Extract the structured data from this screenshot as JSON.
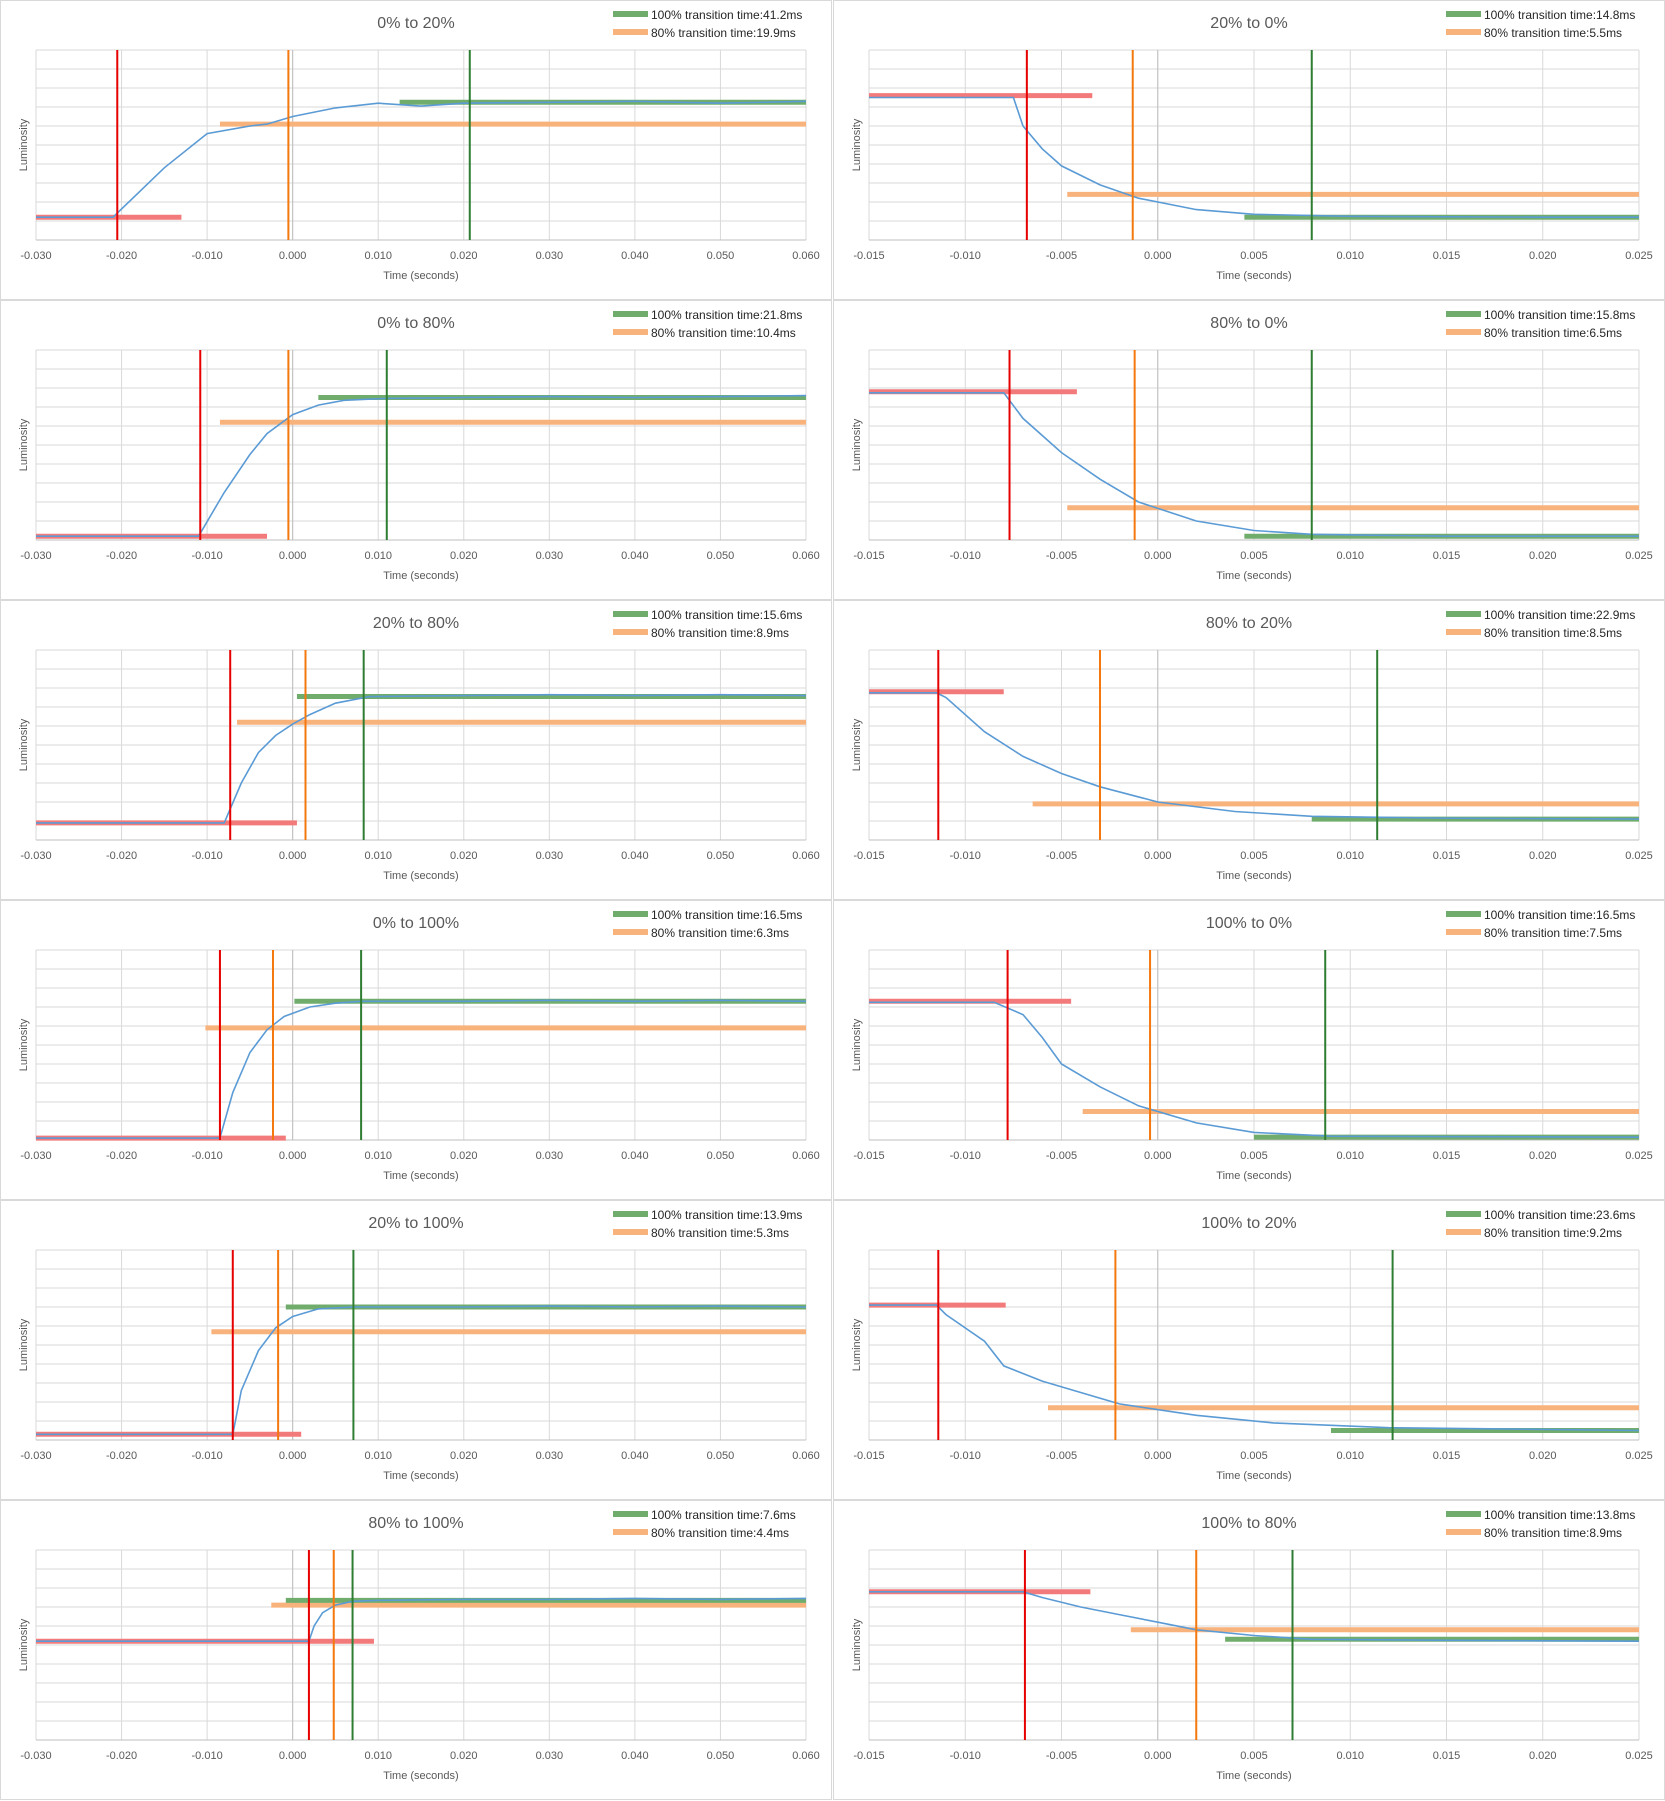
{
  "axis_labels": {
    "x": "Time (seconds)",
    "y": "Luminosity"
  },
  "legend_labels": {
    "full": "100% transition time:",
    "partial": "80% transition time:"
  },
  "colors": {
    "curve": "#5b9bd5",
    "green": "#2e7d32",
    "green_bar": "#70ad6c",
    "orange": "#f4780e",
    "orange_bar": "#f8b27c",
    "red": "#e60000",
    "red_bar": "#f27a7a",
    "grid": "#d9d9d9",
    "text": "#595959"
  },
  "chart_data": [
    {
      "type": "line",
      "title": "0% to 20%",
      "legend": [
        "41.2ms",
        "19.9ms"
      ],
      "xlim": [
        -0.03,
        0.06
      ],
      "xticks": [
        "-0.030",
        "-0.020",
        "-0.010",
        "0.000",
        "0.010",
        "0.020",
        "0.030",
        "0.040",
        "0.050",
        "0.060"
      ],
      "xlabel": "Time (seconds)",
      "ylabel": "Luminosity",
      "ylim": [
        0,
        10
      ],
      "series": [
        {
          "x": [
            -0.03,
            -0.021,
            -0.015,
            -0.01,
            -0.005,
            -0.003,
            0,
            0.005,
            0.01,
            0.015,
            0.02,
            0.03,
            0.04,
            0.05,
            0.06
          ],
          "y": [
            1.2,
            1.2,
            3.8,
            5.6,
            6.0,
            6.1,
            6.5,
            6.95,
            7.2,
            7.05,
            7.2,
            7.25,
            7.3,
            7.2,
            7.3
          ]
        }
      ],
      "red": {
        "x": -0.0205,
        "y": 1.2,
        "x0": -0.03,
        "x1": -0.013
      },
      "orange": {
        "x": -0.0005,
        "y": 6.1,
        "x0": -0.0085,
        "x1": 0.06
      },
      "green": {
        "x": 0.0207,
        "y": 7.25,
        "x0": 0.0125,
        "x1": 0.06
      }
    },
    {
      "type": "line",
      "title": "20% to 0%",
      "legend": [
        "14.8ms",
        "5.5ms"
      ],
      "xlim": [
        -0.015,
        0.025
      ],
      "xticks": [
        "-0.015",
        "-0.010",
        "-0.005",
        "0.000",
        "0.005",
        "0.010",
        "0.015",
        "0.020",
        "0.025"
      ],
      "xlabel": "Time (seconds)",
      "ylabel": "Luminosity",
      "ylim": [
        0,
        10
      ],
      "series": [
        {
          "x": [
            -0.015,
            -0.0075,
            -0.007,
            -0.006,
            -0.005,
            -0.003,
            -0.001,
            0.002,
            0.005,
            0.01,
            0.02,
            0.025
          ],
          "y": [
            7.5,
            7.5,
            6.0,
            4.8,
            3.9,
            2.9,
            2.2,
            1.6,
            1.35,
            1.25,
            1.2,
            1.2
          ]
        }
      ],
      "red": {
        "x": -0.0068,
        "y": 7.6,
        "x0": -0.015,
        "x1": -0.0034
      },
      "orange": {
        "x": -0.0013,
        "y": 2.4,
        "x0": -0.0047,
        "x1": 0.025
      },
      "green": {
        "x": 0.008,
        "y": 1.2,
        "x0": 0.0045,
        "x1": 0.025
      }
    },
    {
      "type": "line",
      "title": "0% to 80%",
      "legend": [
        "21.8ms",
        "10.4ms"
      ],
      "xlim": [
        -0.03,
        0.06
      ],
      "xticks": [
        "-0.030",
        "-0.020",
        "-0.010",
        "0.000",
        "0.010",
        "0.020",
        "0.030",
        "0.040",
        "0.050",
        "0.060"
      ],
      "xlabel": "Time (seconds)",
      "ylabel": "Luminosity",
      "ylim": [
        0,
        10
      ],
      "series": [
        {
          "x": [
            -0.03,
            -0.011,
            -0.008,
            -0.005,
            -0.003,
            0,
            0.003,
            0.006,
            0.011,
            0.02,
            0.03,
            0.04,
            0.05,
            0.06
          ],
          "y": [
            0.2,
            0.2,
            2.5,
            4.5,
            5.6,
            6.6,
            7.1,
            7.35,
            7.45,
            7.5,
            7.55,
            7.5,
            7.55,
            7.6
          ]
        }
      ],
      "red": {
        "x": -0.0108,
        "y": 0.2,
        "x0": -0.03,
        "x1": -0.003
      },
      "orange": {
        "x": -0.0005,
        "y": 6.2,
        "x0": -0.0085,
        "x1": 0.06
      },
      "green": {
        "x": 0.011,
        "y": 7.5,
        "x0": 0.003,
        "x1": 0.06
      }
    },
    {
      "type": "line",
      "title": "80% to 0%",
      "legend": [
        "15.8ms",
        "6.5ms"
      ],
      "xlim": [
        -0.015,
        0.025
      ],
      "xticks": [
        "-0.015",
        "-0.010",
        "-0.005",
        "0.000",
        "0.005",
        "0.010",
        "0.015",
        "0.020",
        "0.025"
      ],
      "xlabel": "Time (seconds)",
      "ylabel": "Luminosity",
      "ylim": [
        0,
        10
      ],
      "series": [
        {
          "x": [
            -0.015,
            -0.008,
            -0.007,
            -0.005,
            -0.003,
            -0.001,
            0.002,
            0.005,
            0.008,
            0.015,
            0.025
          ],
          "y": [
            7.75,
            7.75,
            6.4,
            4.6,
            3.2,
            2.0,
            1.0,
            0.5,
            0.3,
            0.2,
            0.2
          ]
        }
      ],
      "red": {
        "x": -0.0077,
        "y": 7.8,
        "x0": -0.015,
        "x1": -0.0042
      },
      "orange": {
        "x": -0.0012,
        "y": 1.7,
        "x0": -0.0047,
        "x1": 0.025
      },
      "green": {
        "x": 0.008,
        "y": 0.2,
        "x0": 0.0045,
        "x1": 0.025
      }
    },
    {
      "type": "line",
      "title": "20% to 80%",
      "legend": [
        "15.6ms",
        "8.9ms"
      ],
      "xlim": [
        -0.03,
        0.06
      ],
      "xticks": [
        "-0.030",
        "-0.020",
        "-0.010",
        "0.000",
        "0.010",
        "0.020",
        "0.030",
        "0.040",
        "0.050",
        "0.060"
      ],
      "xlabel": "Time (seconds)",
      "ylabel": "Luminosity",
      "ylim": [
        0,
        10
      ],
      "series": [
        {
          "x": [
            -0.03,
            -0.008,
            -0.006,
            -0.004,
            -0.002,
            0,
            0.002,
            0.005,
            0.009,
            0.02,
            0.03,
            0.04,
            0.05,
            0.06
          ],
          "y": [
            0.9,
            0.9,
            3.0,
            4.6,
            5.5,
            6.1,
            6.6,
            7.2,
            7.55,
            7.6,
            7.65,
            7.6,
            7.65,
            7.6
          ]
        }
      ],
      "red": {
        "x": -0.0073,
        "y": 0.9,
        "x0": -0.03,
        "x1": 0.0005
      },
      "orange": {
        "x": 0.0015,
        "y": 6.2,
        "x0": -0.0065,
        "x1": 0.06
      },
      "green": {
        "x": 0.0083,
        "y": 7.55,
        "x0": 0.0005,
        "x1": 0.06
      }
    },
    {
      "type": "line",
      "title": "80% to 20%",
      "legend": [
        "22.9ms",
        "8.5ms"
      ],
      "xlim": [
        -0.015,
        0.025
      ],
      "xticks": [
        "-0.015",
        "-0.010",
        "-0.005",
        "0.000",
        "0.005",
        "0.010",
        "0.015",
        "0.020",
        "0.025"
      ],
      "xlabel": "Time (seconds)",
      "ylabel": "Luminosity",
      "ylim": [
        0,
        10
      ],
      "series": [
        {
          "x": [
            -0.015,
            -0.0115,
            -0.011,
            -0.009,
            -0.007,
            -0.005,
            -0.003,
            0,
            0.004,
            0.008,
            0.015,
            0.025
          ],
          "y": [
            7.75,
            7.75,
            7.5,
            5.7,
            4.4,
            3.5,
            2.8,
            2.0,
            1.5,
            1.25,
            1.15,
            1.1
          ]
        }
      ],
      "red": {
        "x": -0.0114,
        "y": 7.8,
        "x0": -0.015,
        "x1": -0.008
      },
      "orange": {
        "x": -0.003,
        "y": 1.9,
        "x0": -0.0065,
        "x1": 0.025
      },
      "green": {
        "x": 0.0114,
        "y": 1.1,
        "x0": 0.008,
        "x1": 0.025
      }
    },
    {
      "type": "line",
      "title": "0% to 100%",
      "legend": [
        "16.5ms",
        "6.3ms"
      ],
      "xlim": [
        -0.03,
        0.06
      ],
      "xticks": [
        "-0.030",
        "-0.020",
        "-0.010",
        "0.000",
        "0.010",
        "0.020",
        "0.030",
        "0.040",
        "0.050",
        "0.060"
      ],
      "xlabel": "Time (seconds)",
      "ylabel": "Luminosity",
      "ylim": [
        0,
        10
      ],
      "series": [
        {
          "x": [
            -0.03,
            -0.0085,
            -0.007,
            -0.005,
            -0.003,
            -0.001,
            0.002,
            0.005,
            0.008,
            0.02,
            0.03,
            0.04,
            0.05,
            0.06
          ],
          "y": [
            0.1,
            0.1,
            2.5,
            4.6,
            5.8,
            6.5,
            7.0,
            7.2,
            7.3,
            7.3,
            7.35,
            7.3,
            7.35,
            7.3
          ]
        }
      ],
      "red": {
        "x": -0.0085,
        "y": 0.1,
        "x0": -0.03,
        "x1": -0.0008
      },
      "orange": {
        "x": -0.0023,
        "y": 5.9,
        "x0": -0.0102,
        "x1": 0.06
      },
      "green": {
        "x": 0.008,
        "y": 7.3,
        "x0": 0.0002,
        "x1": 0.06
      }
    },
    {
      "type": "line",
      "title": "100% to 0%",
      "legend": [
        "16.5ms",
        "7.5ms"
      ],
      "xlim": [
        -0.015,
        0.025
      ],
      "xticks": [
        "-0.015",
        "-0.010",
        "-0.005",
        "0.000",
        "0.005",
        "0.010",
        "0.015",
        "0.020",
        "0.025"
      ],
      "xlabel": "Time (seconds)",
      "ylabel": "Luminosity",
      "ylim": [
        0,
        10
      ],
      "series": [
        {
          "x": [
            -0.015,
            -0.0085,
            -0.007,
            -0.006,
            -0.005,
            -0.003,
            -0.001,
            0.002,
            0.005,
            0.009,
            0.025
          ],
          "y": [
            7.25,
            7.25,
            6.6,
            5.4,
            4.0,
            2.8,
            1.8,
            0.9,
            0.4,
            0.2,
            0.15
          ]
        }
      ],
      "red": {
        "x": -0.0078,
        "y": 7.3,
        "x0": -0.015,
        "x1": -0.0045
      },
      "orange": {
        "x": -0.0004,
        "y": 1.5,
        "x0": -0.0039,
        "x1": 0.025
      },
      "green": {
        "x": 0.0087,
        "y": 0.15,
        "x0": 0.005,
        "x1": 0.025
      }
    },
    {
      "type": "line",
      "title": "20% to 100%",
      "legend": [
        "13.9ms",
        "5.3ms"
      ],
      "xlim": [
        -0.03,
        0.06
      ],
      "xticks": [
        "-0.030",
        "-0.020",
        "-0.010",
        "0.000",
        "0.010",
        "0.020",
        "0.030",
        "0.040",
        "0.050",
        "0.060"
      ],
      "xlabel": "Time (seconds)",
      "ylabel": "Luminosity",
      "ylim": [
        0,
        10
      ],
      "series": [
        {
          "x": [
            -0.03,
            -0.007,
            -0.006,
            -0.004,
            -0.002,
            0,
            0.003,
            0.007,
            0.02,
            0.03,
            0.04,
            0.05,
            0.06
          ],
          "y": [
            0.3,
            0.3,
            2.6,
            4.7,
            5.9,
            6.5,
            6.9,
            7.0,
            7.0,
            7.05,
            7.0,
            7.05,
            7.0
          ]
        }
      ],
      "red": {
        "x": -0.007,
        "y": 0.3,
        "x0": -0.03,
        "x1": 0.001
      },
      "orange": {
        "x": -0.0017,
        "y": 5.7,
        "x0": -0.0095,
        "x1": 0.06
      },
      "green": {
        "x": 0.0071,
        "y": 7.0,
        "x0": -0.0008,
        "x1": 0.06
      }
    },
    {
      "type": "line",
      "title": "100% to 20%",
      "legend": [
        "23.6ms",
        "9.2ms"
      ],
      "xlim": [
        -0.015,
        0.025
      ],
      "xticks": [
        "-0.015",
        "-0.010",
        "-0.005",
        "0.000",
        "0.005",
        "0.010",
        "0.015",
        "0.020",
        "0.025"
      ],
      "xlabel": "Time (seconds)",
      "ylabel": "Luminosity",
      "ylim": [
        0,
        10
      ],
      "series": [
        {
          "x": [
            -0.015,
            -0.0115,
            -0.011,
            -0.009,
            -0.008,
            -0.006,
            -0.004,
            -0.002,
            0.002,
            0.006,
            0.012,
            0.025
          ],
          "y": [
            7.1,
            7.1,
            6.6,
            5.2,
            3.9,
            3.1,
            2.5,
            1.9,
            1.3,
            0.9,
            0.65,
            0.5
          ]
        }
      ],
      "red": {
        "x": -0.0114,
        "y": 7.1,
        "x0": -0.015,
        "x1": -0.0079
      },
      "orange": {
        "x": -0.0022,
        "y": 1.7,
        "x0": -0.0057,
        "x1": 0.025
      },
      "green": {
        "x": 0.0122,
        "y": 0.5,
        "x0": 0.009,
        "x1": 0.025
      }
    },
    {
      "type": "line",
      "title": "80% to 100%",
      "legend": [
        "7.6ms",
        "4.4ms"
      ],
      "xlim": [
        -0.03,
        0.06
      ],
      "xticks": [
        "-0.030",
        "-0.020",
        "-0.010",
        "0.000",
        "0.010",
        "0.020",
        "0.030",
        "0.040",
        "0.050",
        "0.060"
      ],
      "xlabel": "Time (seconds)",
      "ylabel": "Luminosity",
      "ylim": [
        0,
        10
      ],
      "series": [
        {
          "x": [
            -0.03,
            0.0019,
            0.0025,
            0.0035,
            0.005,
            0.007,
            0.01,
            0.02,
            0.03,
            0.04,
            0.05,
            0.06
          ],
          "y": [
            5.2,
            5.2,
            6.0,
            6.7,
            7.1,
            7.3,
            7.35,
            7.4,
            7.4,
            7.45,
            7.4,
            7.45
          ]
        }
      ],
      "red": {
        "x": 0.0019,
        "y": 5.2,
        "x0": -0.03,
        "x1": 0.0095
      },
      "orange": {
        "x": 0.0048,
        "y": 7.1,
        "x0": -0.0025,
        "x1": 0.06
      },
      "green": {
        "x": 0.007,
        "y": 7.35,
        "x0": -0.0008,
        "x1": 0.06
      }
    },
    {
      "type": "line",
      "title": "100% to 80%",
      "legend": [
        "13.8ms",
        "8.9ms"
      ],
      "xlim": [
        -0.015,
        0.025
      ],
      "xticks": [
        "-0.015",
        "-0.010",
        "-0.005",
        "0.000",
        "0.005",
        "0.010",
        "0.015",
        "0.020",
        "0.025"
      ],
      "xlabel": "Time (seconds)",
      "ylabel": "Luminosity",
      "ylim": [
        0,
        10
      ],
      "series": [
        {
          "x": [
            -0.015,
            -0.007,
            -0.006,
            -0.004,
            -0.002,
            0,
            0.002,
            0.005,
            0.008,
            0.015,
            0.025
          ],
          "y": [
            7.8,
            7.8,
            7.5,
            7.0,
            6.6,
            6.2,
            5.8,
            5.5,
            5.3,
            5.25,
            5.2
          ]
        }
      ],
      "red": {
        "x": -0.0069,
        "y": 7.8,
        "x0": -0.015,
        "x1": -0.0035
      },
      "orange": {
        "x": 0.002,
        "y": 5.8,
        "x0": -0.0014,
        "x1": 0.025
      },
      "green": {
        "x": 0.007,
        "y": 5.3,
        "x0": 0.0035,
        "x1": 0.025
      }
    }
  ]
}
